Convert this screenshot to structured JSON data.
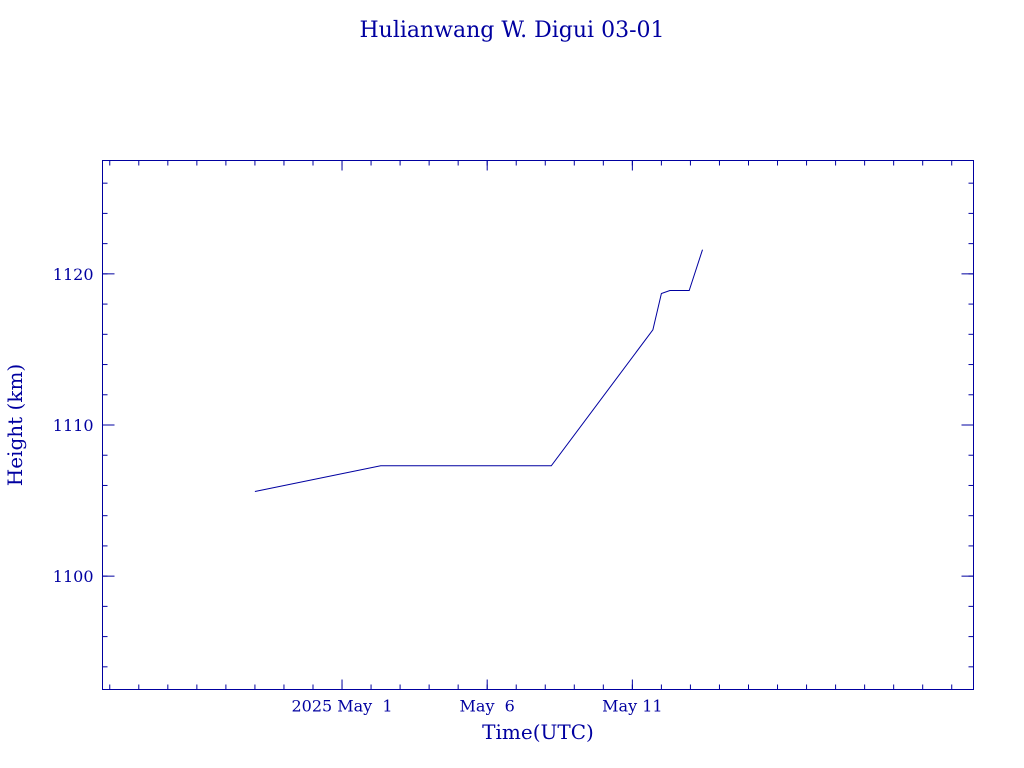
{
  "chart_data": {
    "type": "line",
    "title": "Hulianwang W. Digui 03-01",
    "xlabel": "Time(UTC)",
    "ylabel": "Height (km)",
    "x_axis_type": "date",
    "xlim": [
      "2025-04-22T18:00",
      "2025-05-22T18:00"
    ],
    "ylim": [
      1092.5,
      1127.5
    ],
    "x_ticks": [
      {
        "value": "2025-05-01T00:00",
        "label": "2025 May  1"
      },
      {
        "value": "2025-05-06T00:00",
        "label": "May  6"
      },
      {
        "value": "2025-05-11T00:00",
        "label": "May 11"
      }
    ],
    "y_ticks": [
      {
        "value": 1100,
        "label": "1100"
      },
      {
        "value": 1110,
        "label": "1110"
      },
      {
        "value": 1120,
        "label": "1120"
      }
    ],
    "x_minor_tick_days": 1,
    "y_minor_tick_step": 2,
    "grid": false,
    "series": [
      {
        "color": "#0000a0",
        "points": [
          {
            "x": "2025-04-28T00:00",
            "y": 1105.6
          },
          {
            "x": "2025-05-02T08:00",
            "y": 1107.3
          },
          {
            "x": "2025-05-08T05:00",
            "y": 1107.3
          },
          {
            "x": "2025-05-11T17:00",
            "y": 1116.3
          },
          {
            "x": "2025-05-12T00:00",
            "y": 1118.7
          },
          {
            "x": "2025-05-12T07:00",
            "y": 1118.9
          },
          {
            "x": "2025-05-12T23:00",
            "y": 1118.9
          },
          {
            "x": "2025-05-13T10:00",
            "y": 1121.6
          }
        ]
      }
    ]
  }
}
